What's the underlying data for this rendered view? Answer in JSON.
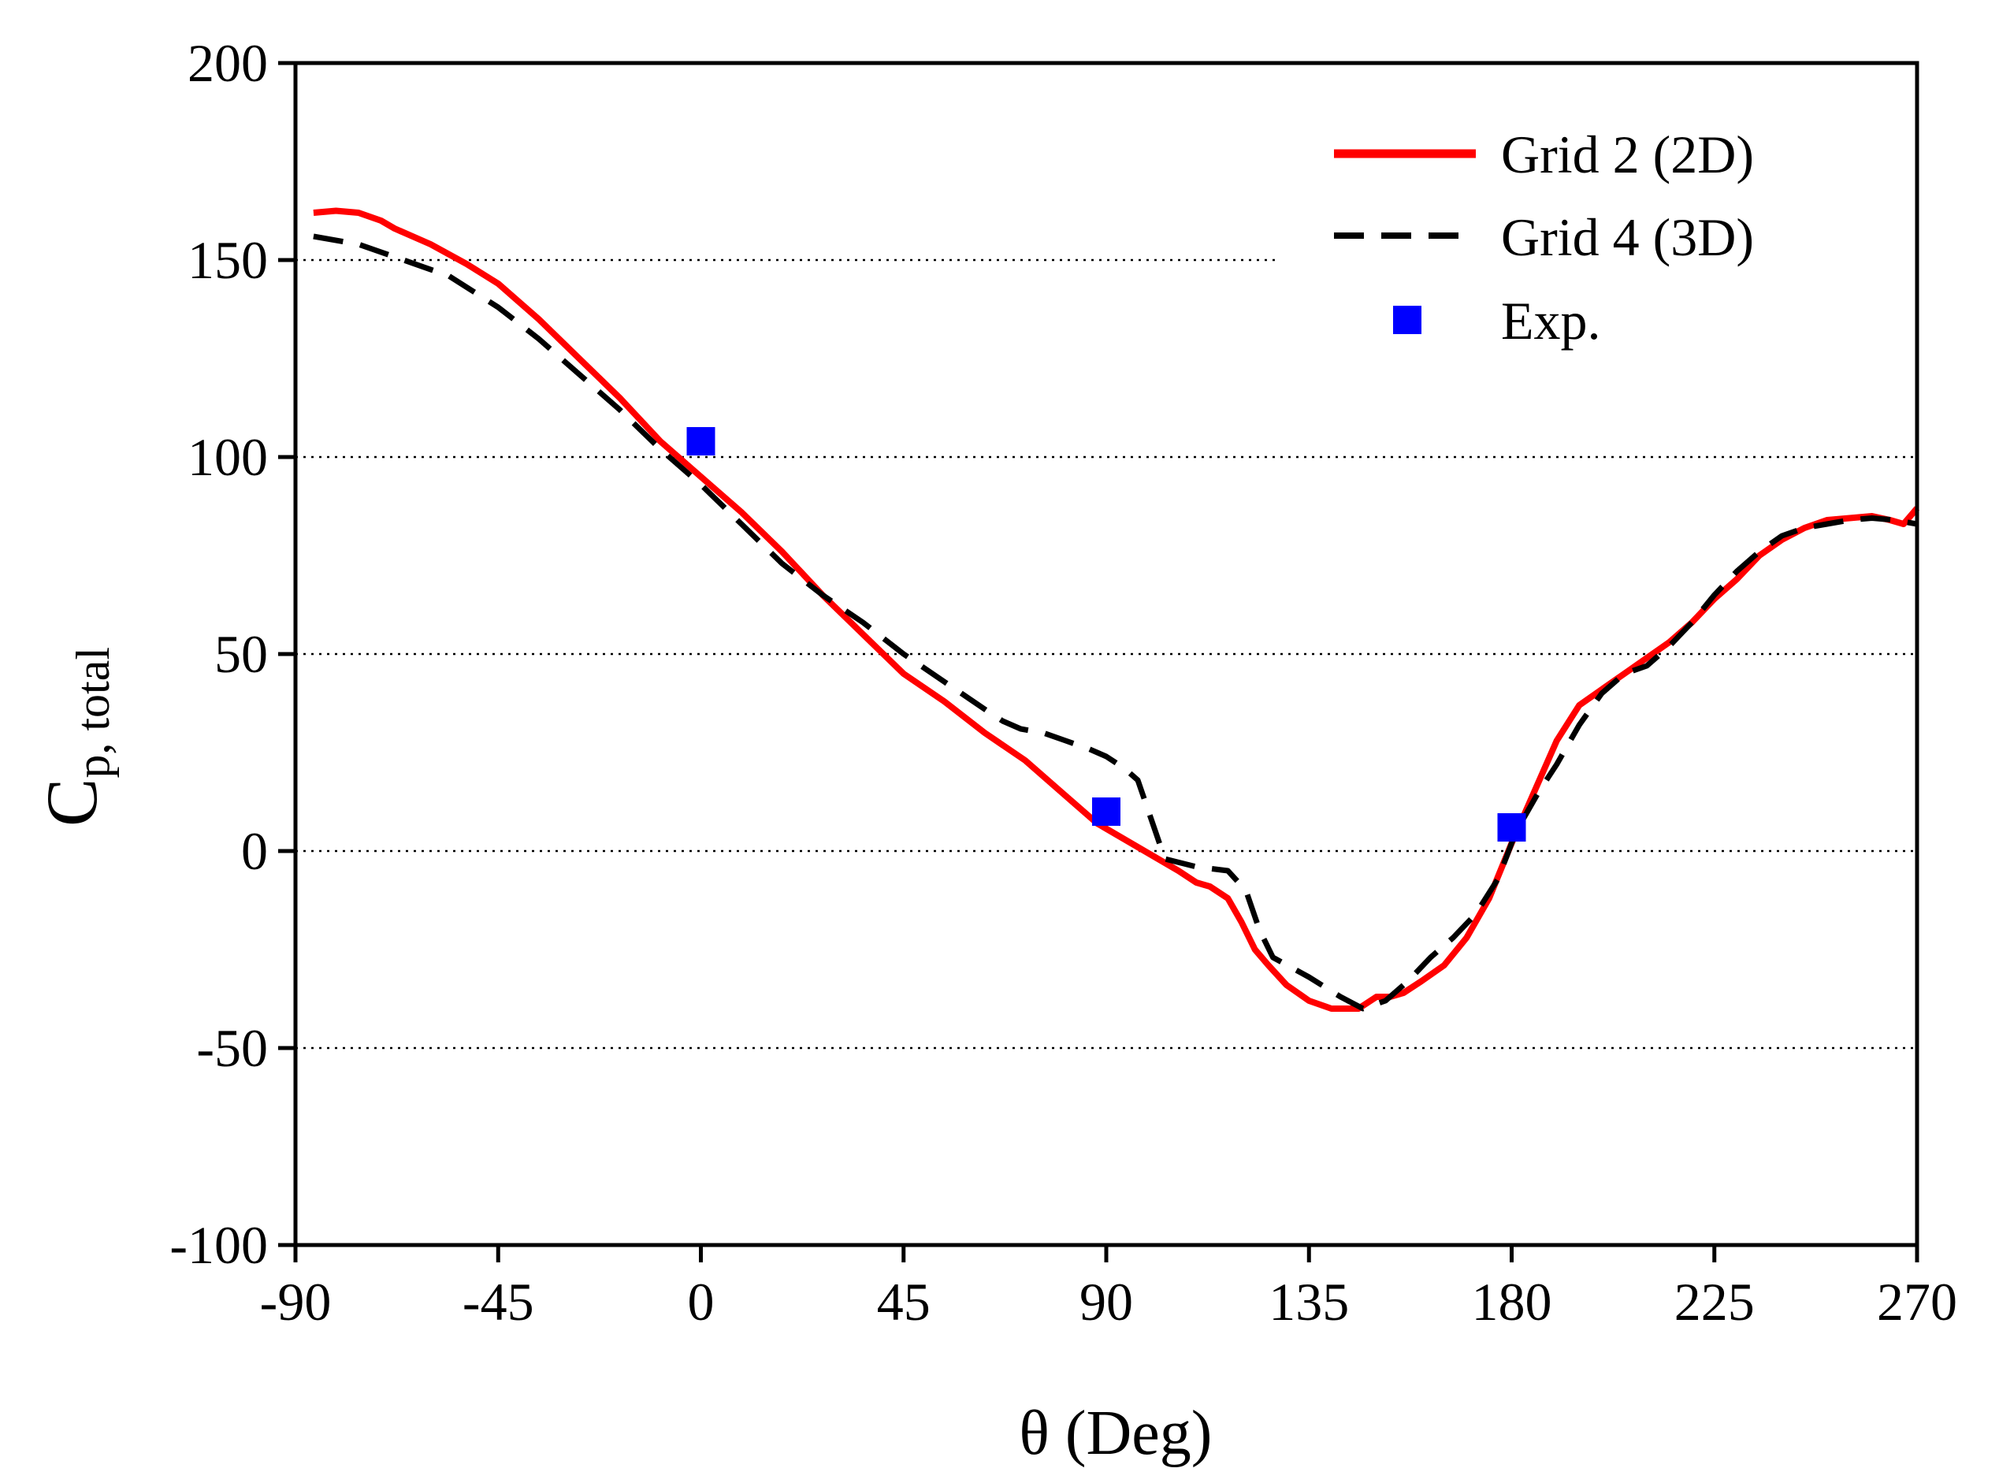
{
  "chart_data": {
    "type": "line",
    "title": "",
    "xlabel": "θ (Deg)",
    "ylabel": {
      "main": "C",
      "subscript": "p, total"
    },
    "xlim": [
      -90,
      270
    ],
    "ylim": [
      -100,
      200
    ],
    "xticks": [
      -90,
      -45,
      0,
      45,
      90,
      135,
      180,
      225,
      270
    ],
    "yticks": [
      -100,
      -50,
      0,
      50,
      100,
      150,
      200
    ],
    "xtick_labels": [
      "-90",
      "-45",
      "0",
      "45",
      "90",
      "135",
      "180",
      "225",
      "270"
    ],
    "ytick_labels": [
      "-100",
      "-50",
      "0",
      "50",
      "100",
      "150",
      "200"
    ],
    "grid": "horizontal dotted",
    "legend_position": "top-right",
    "series": [
      {
        "name": "Grid 2 (2D)",
        "style": "solid",
        "color": "#ff0000",
        "x": [
          -86,
          -81,
          -76,
          -71,
          -68,
          -60,
          -52,
          -45,
          -36,
          -27,
          -18,
          -9,
          0,
          9,
          18,
          27,
          36,
          45,
          54,
          63,
          72,
          81,
          88,
          94,
          100,
          106,
          110,
          113,
          117,
          120,
          123,
          126,
          130,
          135,
          140,
          146,
          150,
          153,
          156,
          160,
          165,
          170,
          175,
          180,
          185,
          190,
          195,
          200,
          205,
          210,
          215,
          220,
          225,
          230,
          235,
          240,
          245,
          250,
          255,
          260,
          264,
          267,
          270
        ],
        "y": [
          162,
          162.5,
          162,
          160,
          158,
          154,
          149,
          144,
          135,
          125,
          115,
          104,
          95,
          86,
          76,
          65,
          55,
          45,
          38,
          30,
          23,
          14,
          7,
          3,
          -1,
          -5,
          -8,
          -9,
          -12,
          -18,
          -25,
          -29,
          -34,
          -38,
          -40,
          -40,
          -37,
          -37,
          -36,
          -33,
          -29,
          -22,
          -12,
          2,
          15,
          28,
          37,
          41,
          45,
          49,
          53,
          58,
          64,
          69,
          75,
          79,
          82,
          84,
          84.5,
          85,
          84,
          83,
          87
        ]
      },
      {
        "name": "Grid 4 (3D)",
        "style": "dashed",
        "color": "#000000",
        "x": [
          -86,
          -76,
          -66,
          -56,
          -45,
          -36,
          -27,
          -18,
          -9,
          0,
          9,
          18,
          27,
          36,
          45,
          54,
          63,
          67,
          71,
          76,
          81,
          86,
          90,
          94,
          97,
          100,
          103,
          110,
          117,
          121,
          124,
          127,
          135,
          142,
          147,
          152,
          157,
          162,
          167,
          172,
          177,
          181,
          186,
          190,
          195,
          200,
          205,
          210,
          215,
          220,
          225,
          230,
          235,
          240,
          245,
          250,
          255,
          260,
          265,
          270
        ],
        "y": [
          156,
          154,
          150,
          146,
          138,
          130,
          121,
          112,
          102,
          93,
          83,
          73,
          65,
          58,
          50,
          43,
          36,
          33,
          31,
          30,
          28,
          26,
          24,
          21,
          18,
          8,
          -2,
          -4,
          -5,
          -10,
          -20,
          -27,
          -32,
          -37,
          -40,
          -38,
          -33,
          -27,
          -22,
          -16,
          -7,
          5,
          15,
          22,
          32,
          40,
          45,
          47,
          52,
          58,
          65,
          71,
          76,
          80,
          82,
          83,
          84,
          84.5,
          84,
          83
        ]
      },
      {
        "name": "Exp.",
        "style": "marker",
        "color": "#0000ff",
        "x": [
          0,
          90,
          180
        ],
        "y": [
          104,
          10,
          6
        ]
      }
    ]
  }
}
